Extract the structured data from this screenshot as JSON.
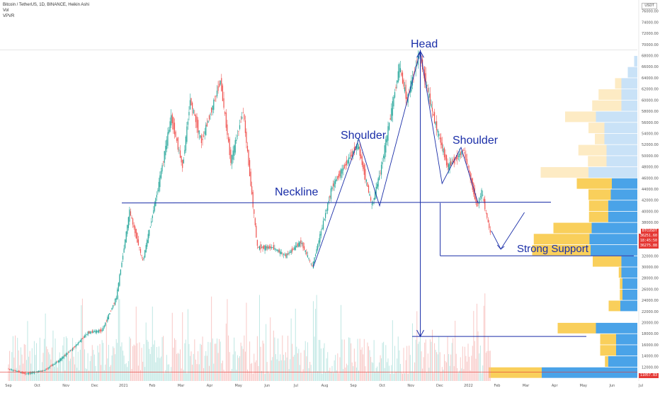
{
  "header": {
    "symbol_line": "Bitcoin / TetherUS, 1D, BINANCE, Heikin Ashi",
    "vol_label": "Vol",
    "vpvr_label": "VPVR"
  },
  "currency_box": "USDT",
  "price_tags": {
    "current_symbol": "BTCUSDT",
    "current": "36251.60",
    "countdown": "18:45:50",
    "secondary": "36275.88",
    "bottom": "11057.83"
  },
  "colors": {
    "up": "#26a69a",
    "down": "#ef5350",
    "annotation": "#1a2ea8",
    "vp_up": "#4aa3e8",
    "vp_down": "#f9cf5b",
    "vp_up_light": "#c9e2f7",
    "vp_down_light": "#fdebc4"
  },
  "annotations": {
    "head": "Head",
    "left_shoulder": "Shoulder",
    "right_shoulder": "Shoulder",
    "neckline": "Neckline",
    "support": "Strong Support"
  },
  "chart_data": {
    "type": "line",
    "y_axis_ticks": [
      10000,
      12000,
      14000,
      16000,
      18000,
      20000,
      22000,
      24000,
      26000,
      28000,
      30000,
      32000,
      34000,
      36000,
      38000,
      40000,
      42000,
      44000,
      46000,
      48000,
      50000,
      52000,
      54000,
      56000,
      58000,
      60000,
      62000,
      64000,
      66000,
      68000,
      70000,
      72000,
      74000,
      76000
    ],
    "y_axis_labels": [
      "",
      "12000.00",
      "14000.00",
      "16000.00",
      "18000.00",
      "20000.00",
      "22000.00",
      "24000.00",
      "26000.00",
      "28000.00",
      "30000.00",
      "32000.00",
      "",
      "",
      "38000.00",
      "40000.00",
      "42000.00",
      "44000.00",
      "46000.00",
      "48000.00",
      "50000.00",
      "52000.00",
      "54000.00",
      "56000.00",
      "58000.00",
      "60000.00",
      "62000.00",
      "64000.00",
      "66000.00",
      "68000.00",
      "70000.00",
      "72000.00",
      "74000.00",
      "76000.00"
    ],
    "x_axis_labels": [
      "Sep",
      "Oct",
      "Nov",
      "Dec",
      "2021",
      "Feb",
      "Mar",
      "Apr",
      "May",
      "Jun",
      "Jul",
      "Aug",
      "Sep",
      "Oct",
      "Nov",
      "Dec",
      "2022",
      "Feb",
      "Mar",
      "Apr",
      "May",
      "Jun",
      "Jul"
    ],
    "ylim": [
      9500,
      78000
    ],
    "series": [
      {
        "values": [
          [
            "2020-09-01",
            11700
          ],
          [
            "2020-09-20",
            10800
          ],
          [
            "2020-10-10",
            11400
          ],
          [
            "2020-10-25",
            13100
          ],
          [
            "2020-11-10",
            15500
          ],
          [
            "2020-11-25",
            18200
          ],
          [
            "2020-12-10",
            18600
          ],
          [
            "2020-12-25",
            24500
          ],
          [
            "2021-01-08",
            40000
          ],
          [
            "2021-01-22",
            31000
          ],
          [
            "2021-02-08",
            45000
          ],
          [
            "2021-02-21",
            57000
          ],
          [
            "2021-03-05",
            48000
          ],
          [
            "2021-03-13",
            60000
          ],
          [
            "2021-03-25",
            52500
          ],
          [
            "2021-04-14",
            63500
          ],
          [
            "2021-04-25",
            49000
          ],
          [
            "2021-05-08",
            58000
          ],
          [
            "2021-05-23",
            33500
          ],
          [
            "2021-06-08",
            33500
          ],
          [
            "2021-06-22",
            32000
          ],
          [
            "2021-07-08",
            34500
          ],
          [
            "2021-07-20",
            30000
          ],
          [
            "2021-08-10",
            44500
          ],
          [
            "2021-09-06",
            52000
          ],
          [
            "2021-09-21",
            41000
          ],
          [
            "2021-10-01",
            48000
          ],
          [
            "2021-10-20",
            66000
          ],
          [
            "2021-10-28",
            60000
          ],
          [
            "2021-11-10",
            68500
          ],
          [
            "2021-11-25",
            57000
          ],
          [
            "2021-12-10",
            48000
          ],
          [
            "2021-12-27",
            51000
          ],
          [
            "2022-01-10",
            41000
          ],
          [
            "2022-01-15",
            43500
          ],
          [
            "2022-01-24",
            36000
          ]
        ]
      }
    ],
    "neckline": 41500,
    "strong_support": 32000,
    "target_level": 17500,
    "head_top": 68800,
    "left_shoulder_top": 53000,
    "right_shoulder_top": 51500,
    "volume_profile": [
      {
        "price": 11000,
        "up": 180,
        "down": 100
      },
      {
        "price": 13000,
        "up": 55,
        "down": 6
      },
      {
        "price": 15000,
        "up": 40,
        "down": 30
      },
      {
        "price": 17000,
        "up": 40,
        "down": 30
      },
      {
        "price": 19000,
        "up": 78,
        "down": 72
      },
      {
        "price": 23000,
        "up": 32,
        "down": 22
      },
      {
        "price": 25000,
        "up": 28,
        "down": 5
      },
      {
        "price": 27000,
        "up": 28,
        "down": 5
      },
      {
        "price": 29000,
        "up": 30,
        "down": 5
      },
      {
        "price": 31000,
        "up": 30,
        "down": 54
      },
      {
        "price": 33000,
        "up": 88,
        "down": 110
      },
      {
        "price": 35000,
        "up": 90,
        "down": 105
      },
      {
        "price": 37000,
        "up": 86,
        "down": 72
      },
      {
        "price": 39000,
        "up": 55,
        "down": 36
      },
      {
        "price": 41000,
        "up": 55,
        "down": 36
      },
      {
        "price": 43000,
        "up": 50,
        "down": 42
      },
      {
        "price": 45000,
        "up": 48,
        "down": 66
      },
      {
        "price": 47000,
        "up": 92,
        "down": 90
      },
      {
        "price": 49000,
        "up": 58,
        "down": 35
      },
      {
        "price": 51000,
        "up": 58,
        "down": 53
      },
      {
        "price": 53000,
        "up": 62,
        "down": 18
      },
      {
        "price": 55000,
        "up": 62,
        "down": 30
      },
      {
        "price": 57000,
        "up": 78,
        "down": 58
      },
      {
        "price": 59000,
        "up": 30,
        "down": 55
      },
      {
        "price": 61000,
        "up": 30,
        "down": 43
      },
      {
        "price": 63000,
        "up": 30,
        "down": 12
      },
      {
        "price": 65000,
        "up": 18,
        "down": 0
      },
      {
        "price": 67000,
        "up": 6,
        "down": 0
      }
    ]
  }
}
